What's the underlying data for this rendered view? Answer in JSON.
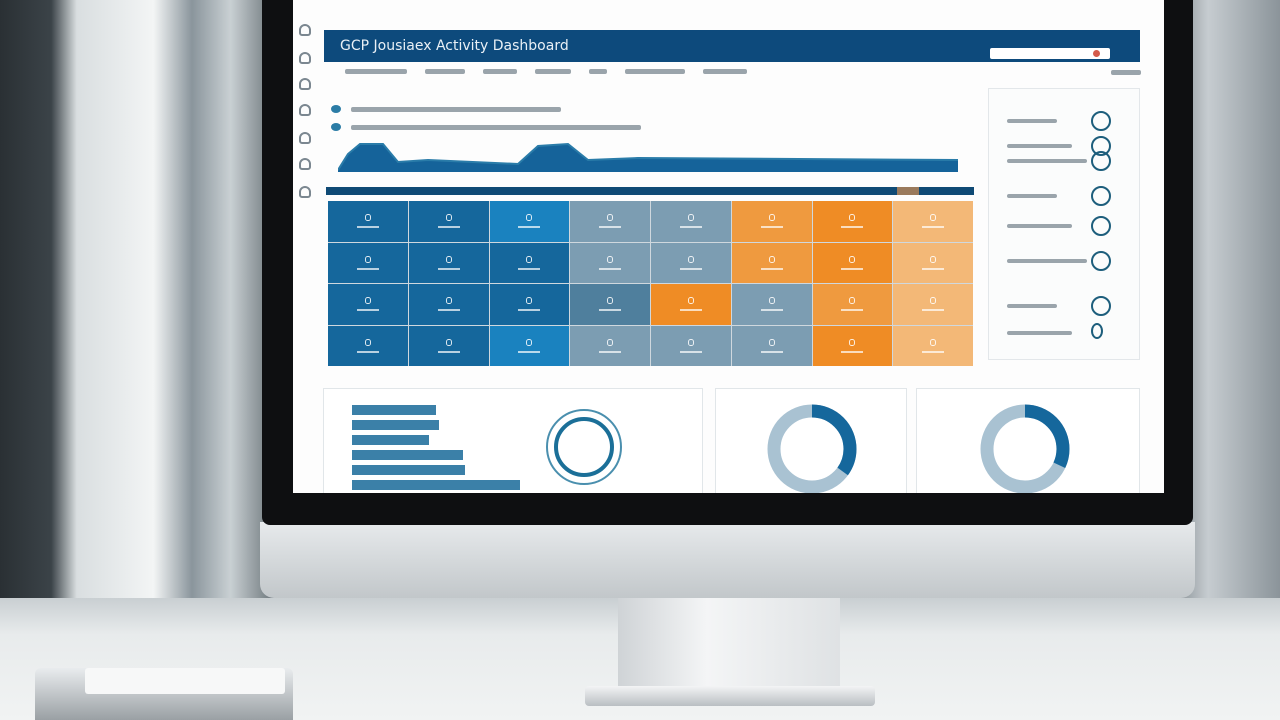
{
  "dashboard": {
    "title": "GCP Jousiaex Activity Dashboard"
  },
  "colors": {
    "header": "#0d4a7c",
    "blue": "#15679c",
    "gray_blue": "#7c9db2",
    "orange": "#ef9a3f",
    "pale_orange": "#f3b877"
  },
  "heatmap": {
    "rows": [
      [
        "b",
        "b",
        "b2",
        "g",
        "g",
        "o",
        "o2",
        "op"
      ],
      [
        "b",
        "b",
        "b",
        "g",
        "g",
        "o",
        "o2",
        "op"
      ],
      [
        "b",
        "b",
        "b",
        "gd",
        "o2",
        "g",
        "o",
        "op"
      ],
      [
        "b",
        "b",
        "b2",
        "g",
        "g",
        "g",
        "o2",
        "op"
      ]
    ]
  },
  "bars": {
    "values": [
      0.5,
      0.52,
      0.46,
      0.66,
      0.67,
      1.0
    ]
  },
  "donuts": [
    {
      "dark_fraction": 0.35
    },
    {
      "dark_fraction": 0.32
    }
  ]
}
